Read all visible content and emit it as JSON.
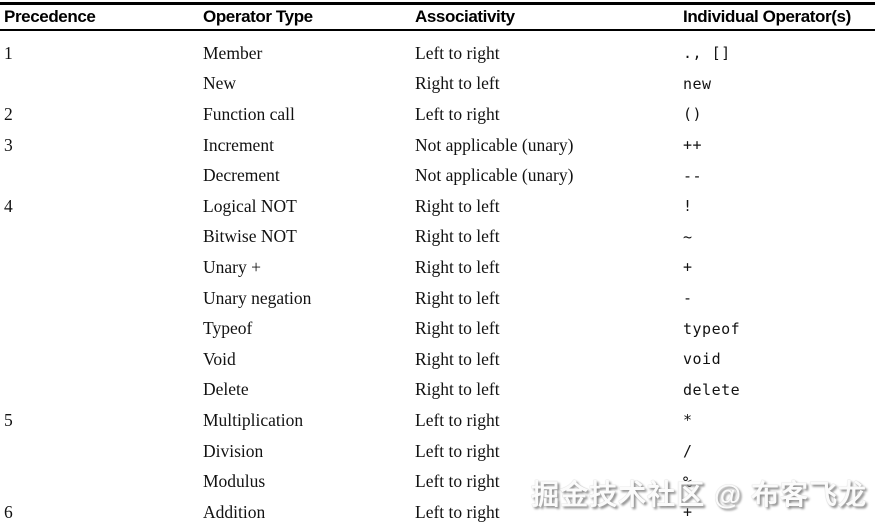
{
  "table": {
    "headers": [
      "Precedence",
      "Operator Type",
      "Associativity",
      "Individual Operator(s)"
    ],
    "rows": [
      {
        "precedence": "1",
        "operator_type": "Member",
        "associativity": "Left to right",
        "operators": "., []"
      },
      {
        "precedence": "",
        "operator_type": "New",
        "associativity": "Right to left",
        "operators": "new"
      },
      {
        "precedence": "2",
        "operator_type": "Function call",
        "associativity": "Left to right",
        "operators": "()"
      },
      {
        "precedence": "3",
        "operator_type": "Increment",
        "associativity": "Not applicable (unary)",
        "operators": "++"
      },
      {
        "precedence": "",
        "operator_type": "Decrement",
        "associativity": "Not applicable (unary)",
        "operators": "--"
      },
      {
        "precedence": "4",
        "operator_type": "Logical NOT",
        "associativity": "Right to left",
        "operators": "!"
      },
      {
        "precedence": "",
        "operator_type": "Bitwise NOT",
        "associativity": "Right to left",
        "operators": "~"
      },
      {
        "precedence": "",
        "operator_type": "Unary +",
        "associativity": "Right to left",
        "operators": "+"
      },
      {
        "precedence": "",
        "operator_type": "Unary negation",
        "associativity": "Right to left",
        "operators": "-"
      },
      {
        "precedence": "",
        "operator_type": "Typeof",
        "associativity": "Right to left",
        "operators": "typeof"
      },
      {
        "precedence": "",
        "operator_type": "Void",
        "associativity": "Right to left",
        "operators": "void"
      },
      {
        "precedence": "",
        "operator_type": "Delete",
        "associativity": "Right to left",
        "operators": "delete"
      },
      {
        "precedence": "5",
        "operator_type": "Multiplication",
        "associativity": "Left to right",
        "operators": "*"
      },
      {
        "precedence": "",
        "operator_type": "Division",
        "associativity": "Left to right",
        "operators": "/"
      },
      {
        "precedence": "",
        "operator_type": "Modulus",
        "associativity": "Left to right",
        "operators": "%"
      },
      {
        "precedence": "6",
        "operator_type": "Addition",
        "associativity": "Left to right",
        "operators": "+"
      }
    ]
  },
  "watermark": {
    "text": "掘金技术社区 @ 布客飞龙"
  },
  "colors": {
    "text": "#121212",
    "rule": "#000000",
    "background": "#ffffff",
    "watermark_fill": "#fbfbfb",
    "watermark_shadow": "#8f8f8f"
  }
}
